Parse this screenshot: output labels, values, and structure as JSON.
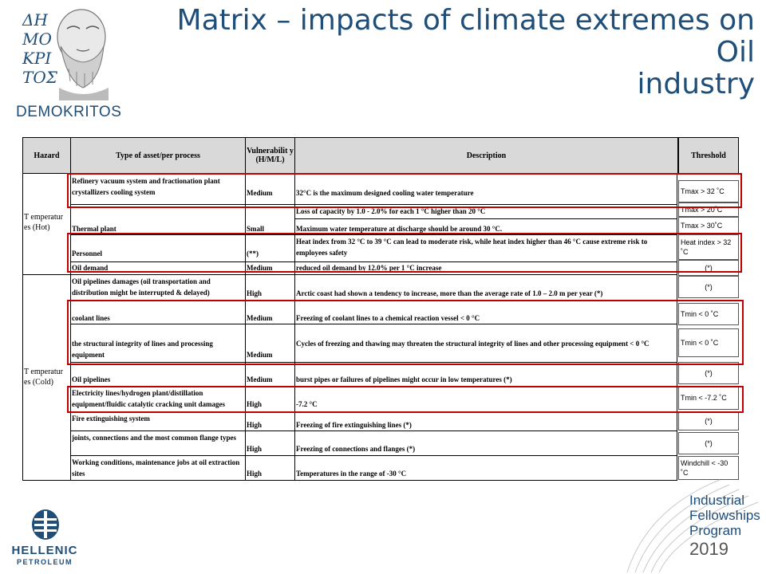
{
  "logo": {
    "text": "DEMOKRITOS",
    "glyphs": "ΔΗΜΟΚΡΙΤΟΣ"
  },
  "title": {
    "line1": "Matrix – impacts of climate extremes on Oil",
    "line2": "industry"
  },
  "table": {
    "headers": {
      "hazard": "Hazard",
      "asset": "Type of asset/per process",
      "vulnerability": "Vulnerabilit y (H/M/L)",
      "description": "Description",
      "threshold": "Threshold"
    },
    "hot_label": "T emperatur es (Hot)",
    "cold_label": "T emperatur es (Cold)",
    "rows": [
      {
        "asset": "Refinery vacuum system and fractionation plant crystallizers cooling system",
        "vulnerability": "Medium",
        "description": "32°C is the maximum designed cooling water temperature",
        "threshold": "Tmax > 32 ˚C"
      },
      {
        "asset": "Thermal plant",
        "vulnerability": "Small",
        "description_1": "Loss of capacity by 1.0 - 2.0% for each 1 °C higher than 20 °C",
        "description_2": "Maximum water temperature at discharge should be around 30 °C.",
        "threshold_1": "Tmax > 20˚C",
        "threshold_2": "Tmax > 30˚C"
      },
      {
        "asset": "Personnel",
        "vulnerability": "(**)",
        "description": "Heat index from 32 °C to 39 °C can lead to moderate risk, while heat index higher than 46 °C cause extreme risk to employees safety",
        "threshold": "Heat index > 32 ˚C"
      },
      {
        "asset": "Oil demand",
        "vulnerability": "Medium",
        "description": "reduced oil demand by 12.0% per 1 °C increase",
        "threshold": "(*)"
      },
      {
        "asset": "Oil pipelines damages (oil transportation and distribution might be interrupted & delayed)",
        "vulnerability": "High",
        "description": "Arctic coast had shown a tendency to increase, more than the average rate of 1.0 – 2.0 m per year (*)",
        "threshold": "(*)"
      },
      {
        "asset": "coolant lines",
        "vulnerability": "Medium",
        "description": "Freezing of coolant lines to a chemical reaction vessel < 0 °C",
        "threshold": "Tmin < 0 ˚C"
      },
      {
        "asset": "the structural integrity of lines and processing equipment",
        "vulnerability": "Medium",
        "description": "Cycles of freezing and thawing may threaten the structural integrity of lines and other processing equipment < 0 °C",
        "threshold": "Tmin < 0 ˚C"
      },
      {
        "asset": "Oil pipelines",
        "vulnerability": "Medium",
        "description": "burst pipes or failures of pipelines might occur in low temperatures (*)",
        "threshold": "(*)"
      },
      {
        "asset": "Electricity lines/hydrogen plant/distillation equipment/fluidic catalytic cracking unit damages",
        "vulnerability": "High",
        "description": "-7.2 °C",
        "threshold": "Tmin < -7.2 ˚C"
      },
      {
        "asset": "Fire extinguishing system",
        "vulnerability": "High",
        "description": "Freezing of fire extinguishing lines (*)",
        "threshold": "(*)"
      },
      {
        "asset": "joints, connections and the most common flange types",
        "vulnerability": "High",
        "description": "Freezing of connections and flanges (*)",
        "threshold": "(*)"
      },
      {
        "asset": "Working conditions, maintenance jobs at oil extraction sites",
        "vulnerability": "High",
        "description": "Temperatures in the range of -30 °C",
        "threshold": "Windchill < -30 ˚C"
      }
    ]
  },
  "hellenic": {
    "name": "HELLENIC",
    "sub": "PETROLEUM"
  },
  "ifp": {
    "line1": "Industrial",
    "line2": "Fellowships",
    "line3": "Program",
    "year": "2019"
  },
  "colors": {
    "title": "#1f4e79",
    "highlight": "#c00000",
    "header_bg": "#d9d9d9"
  }
}
